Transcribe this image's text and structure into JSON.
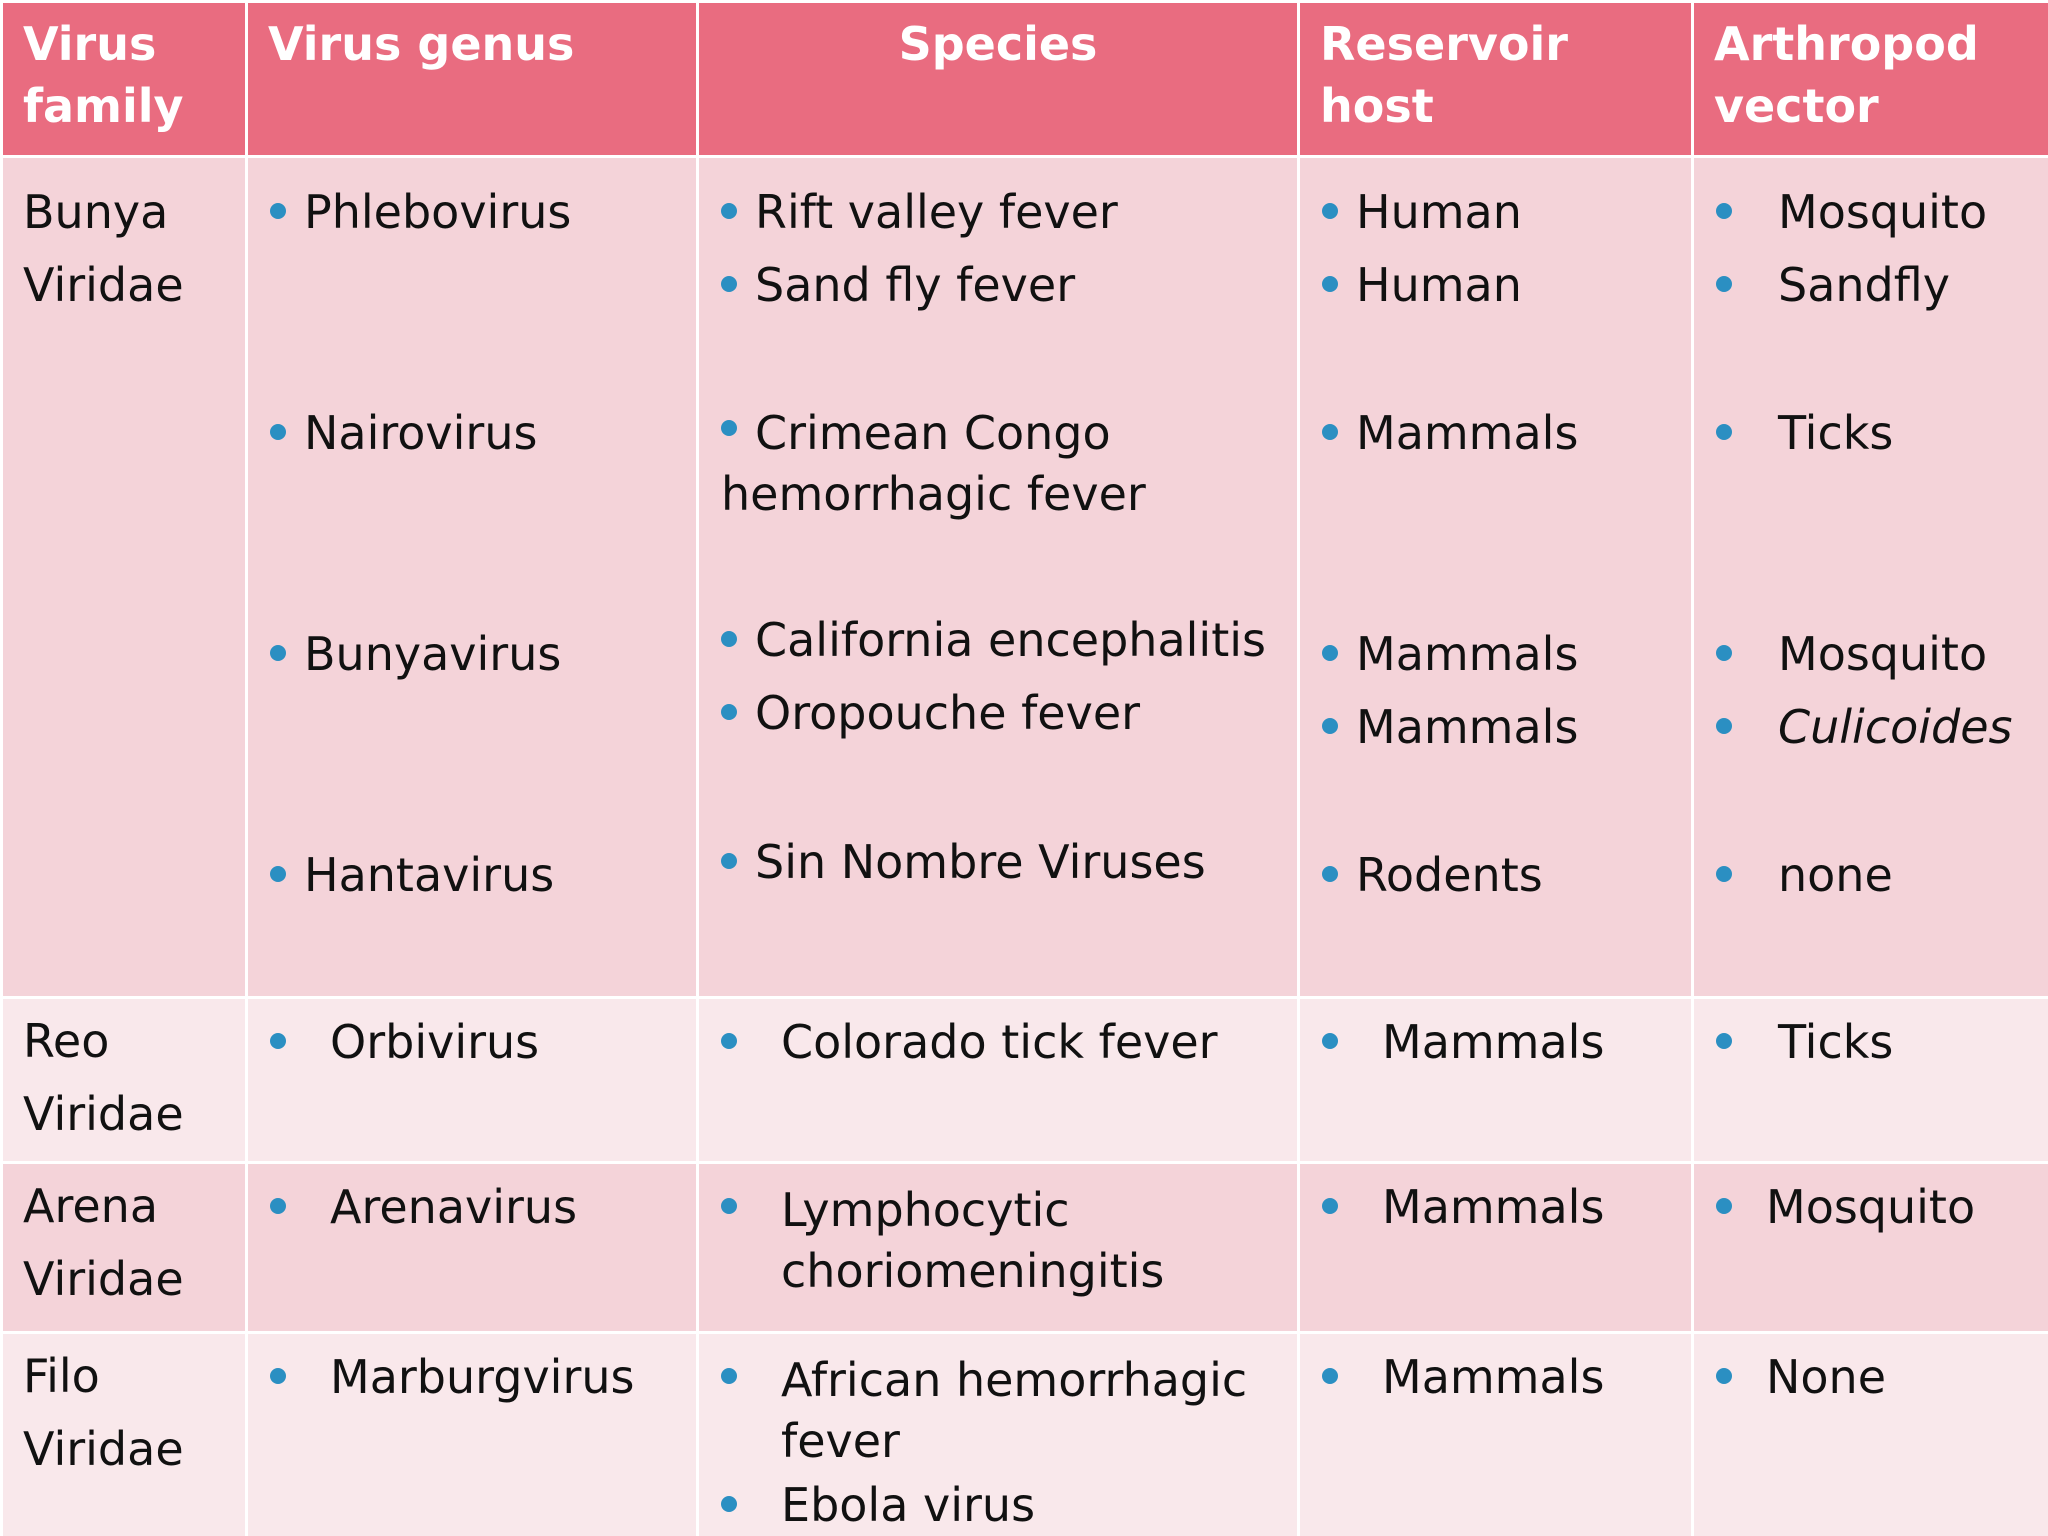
{
  "header": {
    "col1": "Virus family",
    "col2": "Virus genus",
    "col3": "Species",
    "col4": "Reservoir host",
    "col5": "Arthropod vector"
  },
  "rows": [
    {
      "family_line1": "Bunya",
      "family_line2": "Viridae",
      "genera": [
        "Phlebovirus",
        "Nairovirus",
        "Bunyavirus",
        "Hantavirus"
      ],
      "species": {
        "phlebo": [
          "Rift valley fever",
          "Sand fly fever"
        ],
        "nairo_line1": "Crimean Congo",
        "nairo_line2": "hemorrhagic fever",
        "bunya": [
          "California encephalitis",
          "Oropouche fever"
        ],
        "hanta": [
          "Sin Nombre Viruses"
        ]
      },
      "hosts": {
        "phlebo": [
          "Human",
          "Human"
        ],
        "nairo": [
          "Mammals"
        ],
        "bunya": [
          "Mammals",
          "Mammals"
        ],
        "hanta": [
          "Rodents"
        ]
      },
      "vectors": {
        "phlebo": [
          "Mosquito",
          "Sandfly"
        ],
        "nairo": [
          "Ticks"
        ],
        "bunya": [
          "Mosquito",
          "Culicoides"
        ],
        "hanta": [
          "none"
        ]
      }
    },
    {
      "family_line1": "Reo",
      "family_line2": "Viridae",
      "genus": "Orbivirus",
      "species": "Colorado tick fever",
      "host": "Mammals",
      "vector": "Ticks"
    },
    {
      "family_line1": "Arena",
      "family_line2": "Viridae",
      "genus": "Arenavirus",
      "species_line1": "Lymphocytic",
      "species_line2": "choriomeningitis",
      "host": "Mammals",
      "vector": "Mosquito"
    },
    {
      "family_line1": "Filo",
      "family_line2": "Viridae",
      "genus": "Marburgvirus",
      "species_1_line1": "African hemorrhagic",
      "species_1_line2": "fever",
      "species_2": "Ebola virus",
      "host": "Mammals",
      "vector": "None"
    }
  ],
  "colors": {
    "header_bg": "#e96c80",
    "row_dark": "#f4d3d9",
    "row_light": "#f9e8eb",
    "bullet": "#2b8fc2"
  }
}
